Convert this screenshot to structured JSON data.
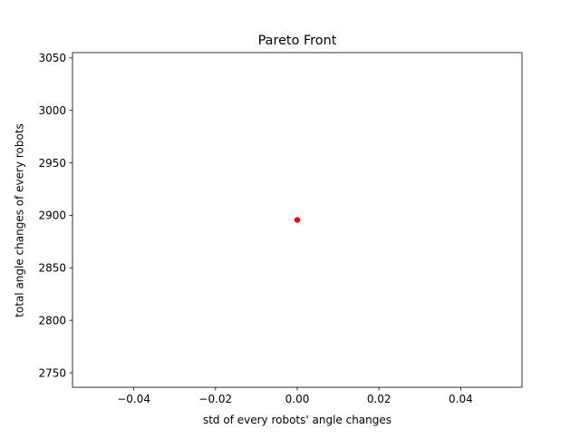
{
  "chart_data": {
    "type": "scatter",
    "title": "Pareto Front",
    "xlabel": "std of every robots' angle changes",
    "ylabel": "total angle changes of every robots",
    "xlim": [
      -0.055,
      0.055
    ],
    "ylim": [
      2736.2,
      3055.0
    ],
    "xticks": [
      -0.04,
      -0.02,
      0.0,
      0.02,
      0.04
    ],
    "xtick_labels": [
      "−0.04",
      "−0.02",
      "0.00",
      "0.02",
      "0.04"
    ],
    "yticks": [
      2750,
      2800,
      2850,
      2900,
      2950,
      3000,
      3050
    ],
    "ytick_labels": [
      "2750",
      "2800",
      "2850",
      "2900",
      "2950",
      "3000",
      "3050"
    ],
    "grid": false,
    "legend": "none",
    "series": [
      {
        "color": "#ff0000",
        "marker": "circle",
        "points": [
          {
            "x": 0.0,
            "y": 2895.6
          }
        ]
      }
    ]
  }
}
